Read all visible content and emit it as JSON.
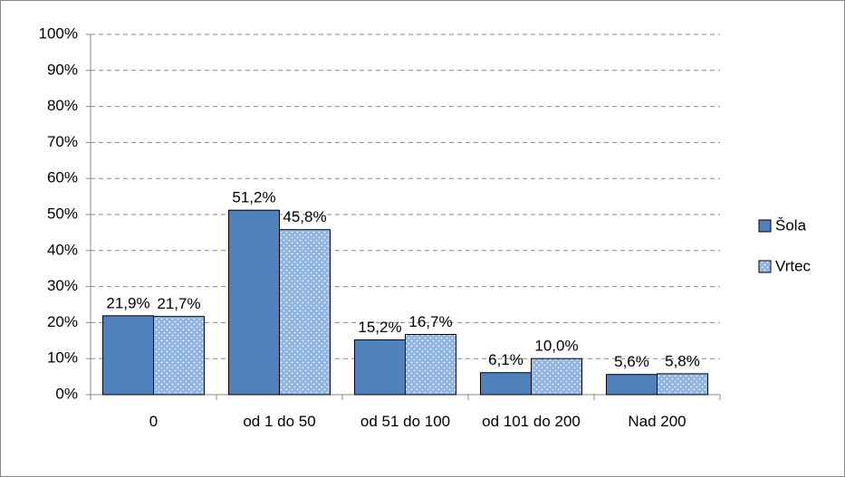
{
  "chart_data": {
    "type": "bar",
    "categories": [
      "0",
      "od 1 do 50",
      "od 51 do 100",
      "od 101 do 200",
      "Nad 200"
    ],
    "series": [
      {
        "name": "Šola",
        "color": "#4f81bd",
        "values": [
          21.9,
          51.2,
          15.2,
          6.1,
          5.6
        ],
        "value_labels": [
          "21,9%",
          "51,2%",
          "15,2%",
          "6,1%",
          "5,6%"
        ]
      },
      {
        "name": "Vrtec",
        "color": "#8eb4e3",
        "values": [
          21.7,
          45.8,
          16.7,
          10.0,
          5.8
        ],
        "value_labels": [
          "21,7%",
          "45,8%",
          "16,7%",
          "10,0%",
          "5,8%"
        ]
      }
    ],
    "ylim": [
      0,
      100
    ],
    "yticks": [
      {
        "value": 0,
        "label": "0%"
      },
      {
        "value": 10,
        "label": "10%"
      },
      {
        "value": 20,
        "label": "20%"
      },
      {
        "value": 30,
        "label": "30%"
      },
      {
        "value": 40,
        "label": "40%"
      },
      {
        "value": 50,
        "label": "50%"
      },
      {
        "value": 60,
        "label": "60%"
      },
      {
        "value": 70,
        "label": "70%"
      },
      {
        "value": 80,
        "label": "80%"
      },
      {
        "value": 90,
        "label": "90%"
      },
      {
        "value": 100,
        "label": "100%"
      }
    ],
    "grid": true,
    "legend": "right"
  }
}
